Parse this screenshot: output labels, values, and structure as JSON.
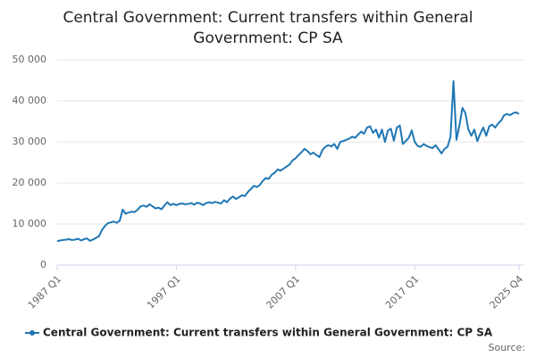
{
  "chart_data": {
    "type": "line",
    "title_lines": [
      "Central Government: Current transfers within General",
      "Government: CP SA"
    ],
    "categories": [
      "1987 Q1",
      null,
      null,
      null,
      null,
      null,
      null,
      null,
      null,
      null,
      null,
      null,
      null,
      null,
      null,
      null,
      null,
      null,
      null,
      null,
      null,
      null,
      null,
      null,
      null,
      null,
      null,
      null,
      null,
      null,
      null,
      null,
      null,
      null,
      null,
      null,
      null,
      null,
      null,
      null,
      "1997 Q1",
      null,
      null,
      null,
      null,
      null,
      null,
      null,
      null,
      null,
      null,
      null,
      null,
      null,
      null,
      null,
      null,
      null,
      null,
      null,
      null,
      null,
      null,
      null,
      null,
      null,
      null,
      null,
      null,
      null,
      null,
      null,
      null,
      null,
      null,
      null,
      null,
      null,
      null,
      null,
      "2007 Q1",
      null,
      null,
      null,
      null,
      null,
      null,
      null,
      null,
      null,
      null,
      null,
      null,
      null,
      null,
      null,
      null,
      null,
      null,
      null,
      null,
      null,
      null,
      null,
      null,
      null,
      null,
      null,
      null,
      null,
      null,
      null,
      null,
      null,
      null,
      null,
      null,
      null,
      null,
      null,
      "2017 Q1",
      null,
      null,
      null,
      null,
      null,
      null,
      null,
      null,
      null,
      null,
      null,
      null,
      null,
      null,
      null,
      null,
      null,
      null,
      null,
      null,
      null,
      null,
      null,
      null,
      null,
      null,
      null,
      null,
      null,
      null,
      null,
      null,
      null,
      null,
      "2025 Q4"
    ],
    "series": [
      {
        "name": "Central Government: Current transfers within General Government: CP SA",
        "color": "#1f77b4",
        "values": [
          5800,
          6000,
          6100,
          6200,
          6300,
          6100,
          6200,
          6400,
          6000,
          6300,
          6500,
          5900,
          6200,
          6600,
          7000,
          8500,
          9500,
          10200,
          10400,
          10600,
          10300,
          10800,
          13500,
          12500,
          12800,
          13000,
          12900,
          13500,
          14300,
          14500,
          14200,
          14800,
          14300,
          13800,
          14000,
          13600,
          14500,
          15300,
          14600,
          14900,
          14600,
          14900,
          15000,
          14800,
          14900,
          15100,
          14700,
          15200,
          15000,
          14600,
          15100,
          15300,
          15100,
          15400,
          15200,
          15000,
          15800,
          15300,
          16200,
          16700,
          16100,
          16500,
          17000,
          16800,
          17800,
          18500,
          19300,
          19000,
          19500,
          20500,
          21200,
          21000,
          22000,
          22500,
          23300,
          23000,
          23500,
          24000,
          24500,
          25500,
          26000,
          26800,
          27500,
          28300,
          27800,
          27000,
          27400,
          26800,
          26300,
          28000,
          28800,
          29200,
          28900,
          29500,
          28300,
          30000,
          30200,
          30500,
          30800,
          31300,
          31000,
          31800,
          32500,
          32000,
          33500,
          33800,
          32200,
          33000,
          31000,
          33000,
          30000,
          32800,
          33200,
          30300,
          33500,
          34000,
          29500,
          30200,
          31000,
          32800,
          30000,
          29000,
          28800,
          29500,
          29000,
          28700,
          28500,
          29200,
          28200,
          27200,
          28300,
          28800,
          31200,
          44800,
          30500,
          34000,
          38300,
          37000,
          33000,
          31500,
          33000,
          30200,
          32000,
          33500,
          31500,
          33800,
          34200,
          33500,
          34500,
          35200,
          36500,
          36800,
          36500,
          37000,
          37200,
          36800
        ]
      }
    ],
    "ylim": [
      0,
      50000
    ],
    "yticks": [
      0,
      {
        "value": 10000,
        "label": "10 000"
      },
      {
        "value": 20000,
        "label": "20 000"
      },
      {
        "value": 30000,
        "label": "30 000"
      },
      {
        "value": 40000,
        "label": "40 000"
      },
      {
        "value": 50000,
        "label": "50 000"
      }
    ],
    "grid": true,
    "source": "Source:"
  }
}
